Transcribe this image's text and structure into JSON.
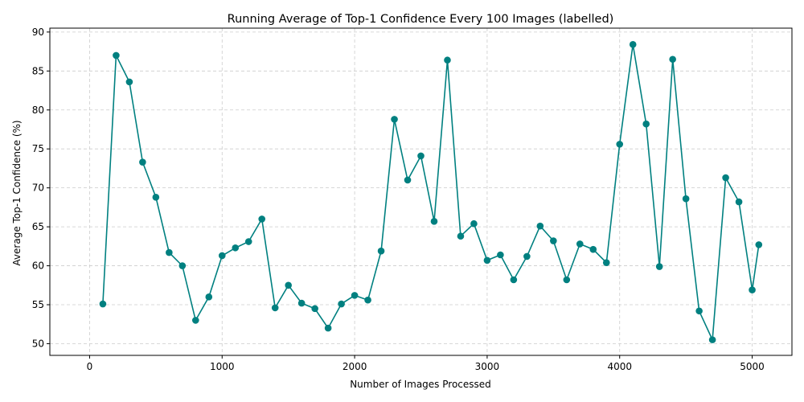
{
  "chart_data": {
    "type": "line",
    "title": "Running Average of Top-1 Confidence Every 100 Images (labelled)",
    "xlabel": "Number of Images Processed",
    "ylabel": "Average Top-1 Confidence (%)",
    "xlim": [
      -300,
      5300
    ],
    "ylim": [
      48.5,
      90.5
    ],
    "xticks": [
      0,
      1000,
      2000,
      3000,
      4000,
      5000
    ],
    "yticks": [
      50,
      55,
      60,
      65,
      70,
      75,
      80,
      85,
      90
    ],
    "grid": true,
    "line_color": "#008080",
    "marker": "circle",
    "series": [
      {
        "x": [
          100,
          200,
          300,
          400,
          500,
          600,
          700,
          800,
          900,
          1000,
          1100,
          1200,
          1300,
          1400,
          1500,
          1600,
          1700,
          1800,
          1900,
          2000,
          2100,
          2200,
          2300,
          2400,
          2500,
          2600,
          2700,
          2800,
          2900,
          3000,
          3100,
          3200,
          3300,
          3400,
          3500,
          3600,
          3700,
          3800,
          3900,
          4000,
          4100,
          4200,
          4300,
          4400,
          4500,
          4600,
          4700,
          4800,
          4900,
          5000,
          5050
        ],
        "y": [
          55.1,
          87.0,
          83.6,
          73.3,
          68.8,
          61.7,
          60.0,
          53.0,
          56.0,
          61.3,
          62.3,
          63.1,
          66.0,
          54.6,
          57.5,
          55.2,
          54.5,
          52.0,
          55.1,
          56.2,
          55.6,
          61.9,
          78.8,
          71.0,
          74.1,
          65.7,
          86.4,
          63.8,
          65.4,
          60.7,
          61.4,
          58.2,
          61.2,
          65.1,
          63.2,
          58.2,
          62.8,
          62.1,
          60.4,
          75.6,
          88.4,
          78.2,
          59.9,
          86.5,
          68.6,
          54.2,
          50.5,
          71.3,
          68.2,
          56.9,
          62.7
        ]
      }
    ]
  }
}
